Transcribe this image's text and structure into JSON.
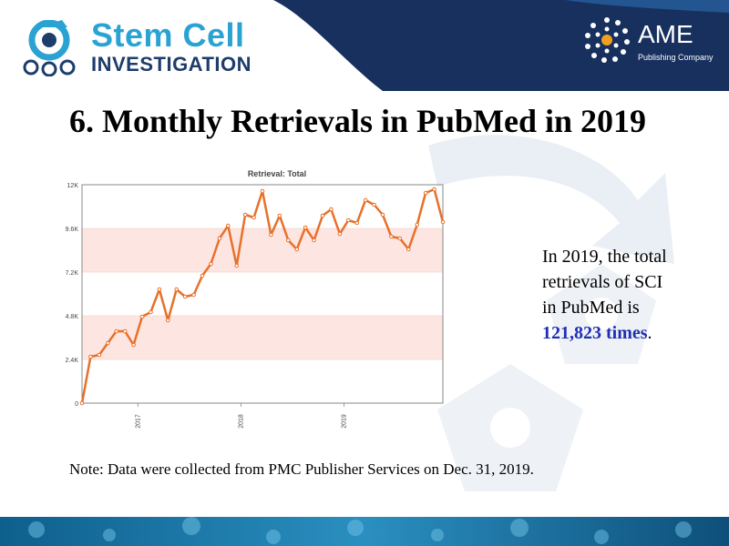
{
  "header": {
    "journal_logo_line1": "Stem Cell",
    "journal_logo_line2": "INVESTIGATION",
    "publisher_logo_name": "AME",
    "publisher_logo_sub": "Publishing Company",
    "logo_icon": "gear-cells-icon",
    "publisher_icon": "dots-circle-icon"
  },
  "title": "6. Monthly Retrievals in PubMed in 2019",
  "side_text": {
    "line1": "In 2019, the total",
    "line2": "retrievals of SCI",
    "line3": "in PubMed is",
    "highlight": "121,823 times",
    "suffix": "."
  },
  "note": "Note: Data were collected from PMC Publisher Services on Dec. 31, 2019.",
  "colors": {
    "line": "#e8702a",
    "band": "#fde6e1",
    "logo_blue": "#2aa3d3",
    "logo_navy": "#1d3d6b",
    "header_navy": "#17305e",
    "highlight": "#1f2fb3"
  },
  "chart_data": {
    "type": "line",
    "title": "Retrieval: Total",
    "xlabel": "",
    "ylabel": "",
    "ylim": [
      0,
      12000
    ],
    "yticks": [
      0,
      2400,
      4800,
      7200,
      9600,
      12000
    ],
    "ytick_labels": [
      "0",
      "2.4K",
      "4.8K",
      "7.2K",
      "9.6K",
      "12K"
    ],
    "x_tick_labels": [
      {
        "label": "2017",
        "index": 6.5
      },
      {
        "label": "2018",
        "index": 18.5
      },
      {
        "label": "2019",
        "index": 30.5
      }
    ],
    "grid": false,
    "series": [
      {
        "values": [
          0,
          2550,
          2650,
          3300,
          3950,
          3950,
          3200,
          4750,
          5000,
          6250,
          4550,
          6250,
          5850,
          5950,
          7000,
          7650,
          9050,
          9750,
          7550,
          10350,
          10200,
          11650,
          9250,
          10300,
          8950,
          8450,
          9650,
          8950,
          10300,
          10650,
          9300,
          10050,
          9900,
          11150,
          10900,
          10350,
          9150,
          9050,
          8450,
          9800,
          11550,
          11750,
          9950
        ]
      }
    ]
  }
}
